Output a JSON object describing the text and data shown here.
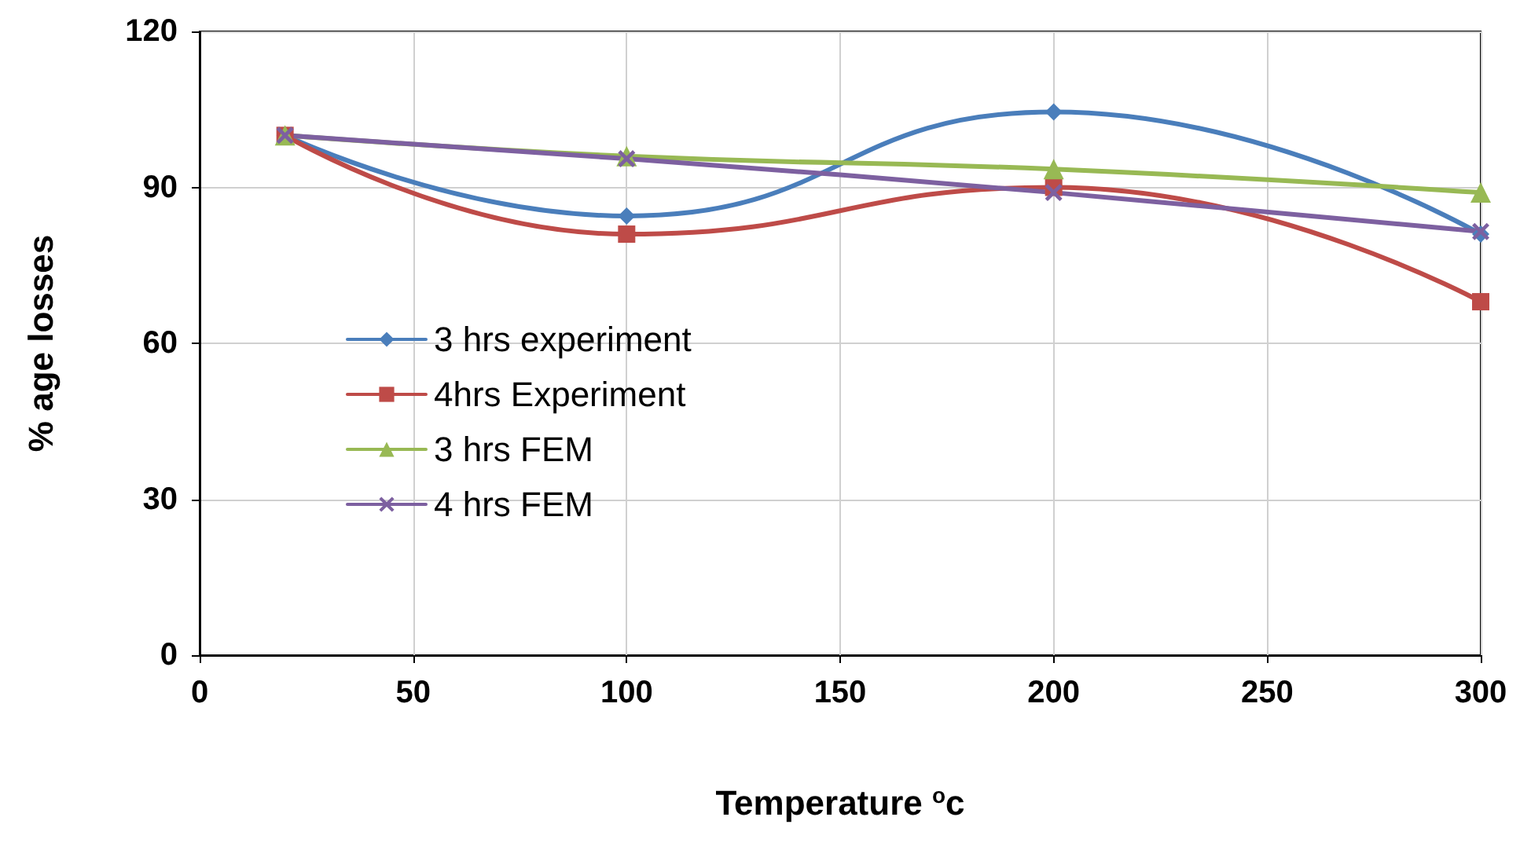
{
  "chart_data": {
    "type": "line",
    "xlabel": "Temperature $^{o}$c",
    "ylabel": "% age losses",
    "x": [
      20,
      100,
      200,
      300
    ],
    "series": [
      {
        "name": "3 hrs experiment",
        "color": "#4a7ebb",
        "marker": "diamond",
        "values": [
          100,
          84.5,
          104.5,
          81
        ]
      },
      {
        "name": "4hrs Experiment",
        "color": "#be4b48",
        "marker": "square",
        "values": [
          100,
          81,
          90,
          68
        ]
      },
      {
        "name": "3 hrs FEM",
        "color": "#98b954",
        "marker": "triangle",
        "values": [
          100,
          96,
          93.5,
          89
        ]
      },
      {
        "name": "4 hrs FEM",
        "color": "#7d60a0",
        "marker": "cross",
        "values": [
          100,
          95.5,
          89,
          81.5
        ]
      }
    ],
    "xlim": [
      0,
      300
    ],
    "xticks": [
      0,
      50,
      100,
      150,
      200,
      250,
      300
    ],
    "ylim": [
      0,
      120
    ],
    "yticks": [
      0,
      30,
      60,
      90,
      120
    ],
    "grid": true,
    "legend": "left",
    "line_style": "solid"
  }
}
